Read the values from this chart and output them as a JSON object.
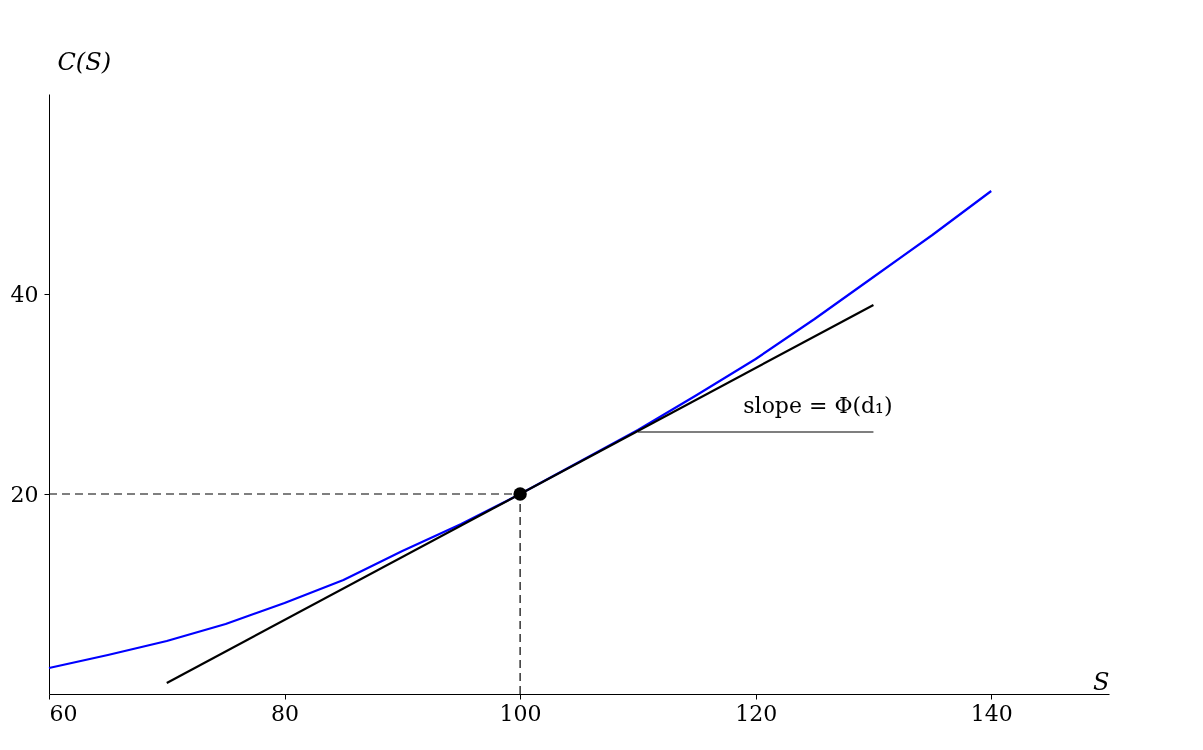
{
  "chart_data": {
    "type": "line",
    "xlabel": "S",
    "ylabel": "C(S)",
    "xlim": [
      60,
      150
    ],
    "ylim": [
      0,
      60
    ],
    "xticks": [
      60,
      80,
      100,
      120,
      140
    ],
    "yticks": [
      20,
      40
    ],
    "grid": false,
    "series": [
      {
        "color": "#0000ff",
        "x": [
          60,
          65,
          70,
          75,
          80,
          85,
          90,
          95,
          100,
          105,
          110,
          115,
          120,
          125,
          130,
          135,
          140
        ],
        "values": [
          2.6,
          3.9,
          5.3,
          7.0,
          9.1,
          11.4,
          14.3,
          17.0,
          20.0,
          23.2,
          26.4,
          29.9,
          33.5,
          37.5,
          41.7,
          45.9,
          50.3
        ]
      },
      {
        "color": "#000000",
        "x": [
          70,
          130
        ],
        "values": [
          1.1,
          38.9
        ]
      },
      {
        "color": "#000000",
        "x": [
          110,
          130
        ],
        "values": [
          26.2,
          26.2
        ]
      },
      {
        "color": "#000000",
        "line_style": "dashed",
        "x": [
          60,
          100
        ],
        "values": [
          20,
          20
        ]
      },
      {
        "color": "#000000",
        "line_style": "dashed",
        "x": [
          100,
          100
        ],
        "values": [
          0,
          20
        ]
      },
      {
        "type": "scatter",
        "color": "#000000",
        "marker": "circle",
        "x": [
          100
        ],
        "values": [
          20
        ]
      }
    ],
    "annotations": [
      "slope = Φ(d₁)"
    ]
  }
}
